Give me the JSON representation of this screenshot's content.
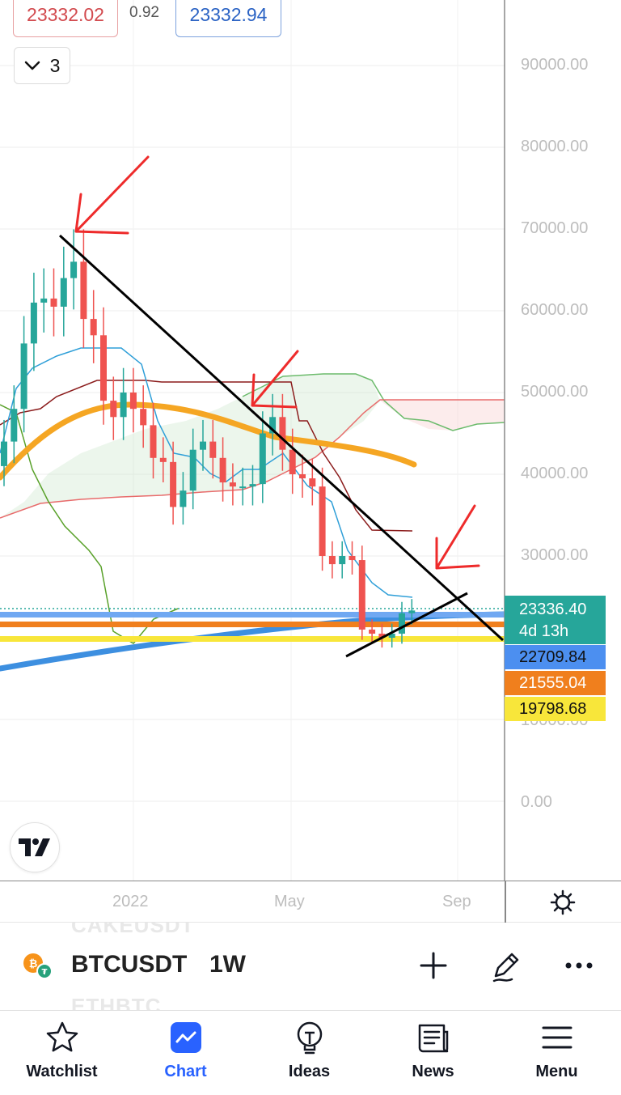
{
  "quote": {
    "bid": "23332.02",
    "spread": "0.92",
    "ask": "23332.94"
  },
  "indicator_collapse": {
    "count": "3",
    "icon": "chevron-down-icon"
  },
  "price_axis": {
    "ticks": [
      "90000.00",
      "80000.00",
      "70000.00",
      "60000.00",
      "50000.00",
      "40000.00",
      "30000.00",
      "10000.00",
      "0.00"
    ]
  },
  "price_tags": {
    "last_price": "23336.40",
    "countdown": "4d 13h",
    "blue_level": "22709.84",
    "orange_level": "21555.04",
    "yellow_level": "19798.68",
    "colors": {
      "last": "#26a69a",
      "blue": "#4c8ff0",
      "orange": "#f07f1d",
      "yellow": "#f8e63a"
    }
  },
  "time_axis": {
    "labels": [
      "2022",
      "May",
      "Sep"
    ]
  },
  "symbol_bar": {
    "ghost_above": "CAKEUSDT",
    "ghost_below": "ETHBTC",
    "symbol": "BTCUSDT",
    "interval": "1W",
    "actions": [
      "plus-icon",
      "pencil-icon",
      "more-icon"
    ]
  },
  "tabs": [
    {
      "label": "Watchlist",
      "icon": "star-icon",
      "active": false
    },
    {
      "label": "Chart",
      "icon": "chart-icon",
      "active": true
    },
    {
      "label": "Ideas",
      "icon": "lightbulb-icon",
      "active": false
    },
    {
      "label": "News",
      "icon": "news-icon",
      "active": false
    },
    {
      "label": "Menu",
      "icon": "menu-icon",
      "active": false
    }
  ],
  "chart_data": {
    "type": "candlestick",
    "instrument": "BTCUSDT",
    "timeframe": "1W",
    "y_range": [
      0,
      95000
    ],
    "gridlines": true,
    "candles_close_approx": [
      44000,
      48000,
      56000,
      61000,
      61500,
      60500,
      64000,
      66000,
      59000,
      57000,
      49000,
      47000,
      50000,
      48000,
      46000,
      42000,
      41500,
      36000,
      38000,
      43000,
      44000,
      42000,
      39000,
      38500,
      38500,
      38800,
      45000,
      47000,
      43000,
      40000,
      39500,
      38500,
      30000,
      29000,
      30000,
      29500,
      21000,
      20500,
      20000,
      20500,
      23000,
      23336
    ],
    "levels": [
      23336.4,
      22709.84,
      21555.04,
      19798.68
    ]
  }
}
